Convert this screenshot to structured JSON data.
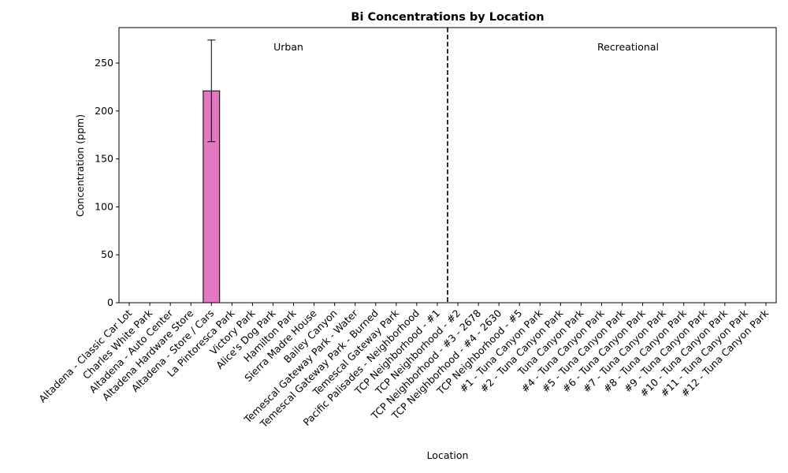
{
  "chart_data": {
    "type": "bar",
    "title": "Bi Concentrations by Location",
    "xlabel": "Location",
    "ylabel": "Concentration (ppm)",
    "ylim": [
      0,
      287
    ],
    "yticks": [
      0,
      50,
      100,
      150,
      200,
      250
    ],
    "grid": false,
    "legend": "none",
    "categories": [
      "Altadena - Classic Car Lot",
      "Charles White Park",
      "Altadena - Auto Center",
      "Altadena Hardware Store",
      "Altadena - Store / Cars",
      "La Pintoresca Park",
      "Victory Park",
      "Alice's Dog Park",
      "Hamilton Park",
      "Sierra Madre House",
      "Bailey Canyon",
      "Temescal Gateway Park - Water",
      "Temescal Gateway Park - Burned",
      "Temescal Gateway Park",
      "Pacific Palisades - Neighborhood",
      "TCP Neighborhood - #1",
      "TCP Neighborhood - #2",
      "TCP Neighborhood - #3 - 2678",
      "TCP Neighborhood - #4 - 2630",
      "TCP Neighborhood - #5",
      "#1 - Tuna Canyon Park",
      "#2 - Tuna Canyon Park",
      "Tuna Canyon Park",
      "#4 - Tuna Canyon Park",
      "#5 - Tuna Canyon Park",
      "#6 - Tuna Canyon Park",
      "#7 - Tuna Canyon Park",
      "#8 - Tuna Canyon Park",
      "#9 - Tuna Canyon Park",
      "#10 - Tuna Canyon Park",
      "#11 - Tuna Canyon Park",
      "#12 - Tuna Canyon Park"
    ],
    "values": [
      0,
      0,
      0,
      0,
      221,
      0,
      0,
      0,
      0,
      0,
      0,
      0,
      0,
      0,
      0,
      0,
      0,
      0,
      0,
      0,
      0,
      0,
      0,
      0,
      0,
      0,
      0,
      0,
      0,
      0,
      0,
      0
    ],
    "errors": [
      0,
      0,
      0,
      0,
      53,
      0,
      0,
      0,
      0,
      0,
      0,
      0,
      0,
      0,
      0,
      0,
      0,
      0,
      0,
      0,
      0,
      0,
      0,
      0,
      0,
      0,
      0,
      0,
      0,
      0,
      0,
      0
    ],
    "bar_color": "#e377c2",
    "divider_after_category": "TCP Neighborhood - #1",
    "annotations": [
      {
        "text": "Urban",
        "region": "left"
      },
      {
        "text": "Recreational",
        "region": "right"
      }
    ]
  }
}
